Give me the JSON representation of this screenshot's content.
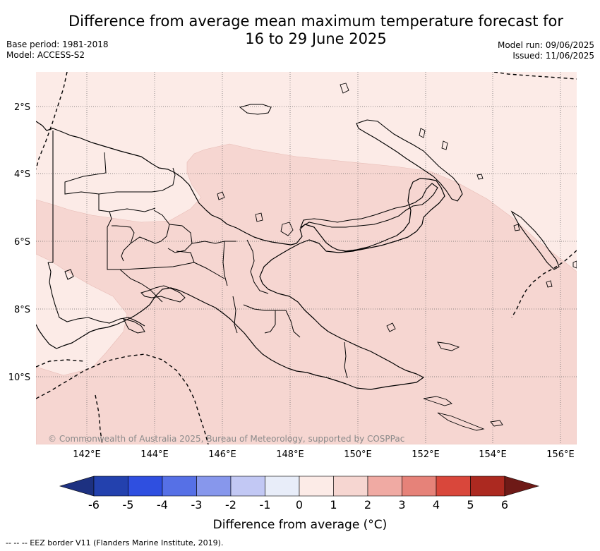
{
  "title": {
    "line1": "Difference from average mean maximum temperature forecast for",
    "line2": "16 to 29 June 2025"
  },
  "meta_left": {
    "base_period": "Base period: 1981-2018",
    "model": "Model: ACCESS-S2"
  },
  "meta_right": {
    "model_run": "Model run: 09/06/2025",
    "issued": "Issued: 11/06/2025"
  },
  "map": {
    "lat_labels": [
      "2°S",
      "4°S",
      "6°S",
      "8°S",
      "10°S"
    ],
    "lon_labels": [
      "142°E",
      "144°E",
      "146°E",
      "148°E",
      "150°E",
      "152°E",
      "154°E",
      "156°E"
    ],
    "copyright": "© Commonwealth of Australia 2025, Bureau of Meteorology, supported by COSPPac",
    "fill_colors": {
      "zero_to_one": "#fcebe7",
      "one_to_two": "#f6d6d1",
      "minus_one_to_zero": "#e8edf9"
    }
  },
  "colorbar": {
    "ticks": [
      "-6",
      "-5",
      "-4",
      "-3",
      "-2",
      "-1",
      "0",
      "1",
      "2",
      "3",
      "4",
      "5",
      "6"
    ],
    "colors": [
      "#1d3181",
      "#2341ae",
      "#2f4fe0",
      "#5670e6",
      "#8797ec",
      "#c2c8f4",
      "#e8edf9",
      "#fcebe7",
      "#f6d6d1",
      "#f0aaa3",
      "#e68279",
      "#d9473b",
      "#ac2920",
      "#6e1a17"
    ],
    "title": "Difference from average (°C)"
  },
  "footer": "-- -- -- EEZ border V11 (Flanders Marine Institute, 2019)."
}
